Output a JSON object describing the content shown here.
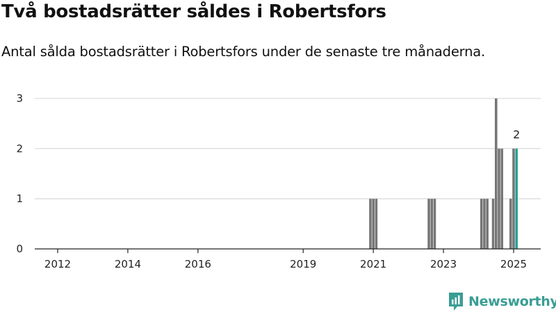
{
  "title": "Två bostadsrätter såldes i Robertsfors",
  "subtitle": "Antal sålda bostadsrätter i Robertsfors under de senaste tre månaderna.",
  "brand": {
    "name": "Newsworthy",
    "icon": "newsworthy-logo-icon",
    "color": "#3a9d94"
  },
  "chart_data": {
    "type": "bar",
    "title": "",
    "xlabel": "",
    "ylabel": "",
    "ylim": [
      0,
      3
    ],
    "yticks": [
      "0",
      "1",
      "2",
      "3"
    ],
    "grid": true,
    "xticks": [
      "2012",
      "2014",
      "2016",
      "2019",
      "2021",
      "2023",
      "2025"
    ],
    "bar_color": "#767676",
    "highlight_color": "#25a195",
    "series": [
      {
        "values": [
          {
            "date": "2020-12",
            "value": 1
          },
          {
            "date": "2021-01",
            "value": 1
          },
          {
            "date": "2021-02",
            "value": 1
          },
          {
            "date": "2022-08",
            "value": 1
          },
          {
            "date": "2022-09",
            "value": 1
          },
          {
            "date": "2022-10",
            "value": 1
          },
          {
            "date": "2024-02",
            "value": 1
          },
          {
            "date": "2024-03",
            "value": 1
          },
          {
            "date": "2024-04",
            "value": 1
          },
          {
            "date": "2024-06",
            "value": 1
          },
          {
            "date": "2024-07",
            "value": 3
          },
          {
            "date": "2024-08",
            "value": 2
          },
          {
            "date": "2024-09",
            "value": 2
          },
          {
            "date": "2024-12",
            "value": 1
          },
          {
            "date": "2025-01",
            "value": 2
          },
          {
            "date": "2025-02",
            "value": 2,
            "highlight": true,
            "label": "2"
          }
        ]
      }
    ]
  }
}
